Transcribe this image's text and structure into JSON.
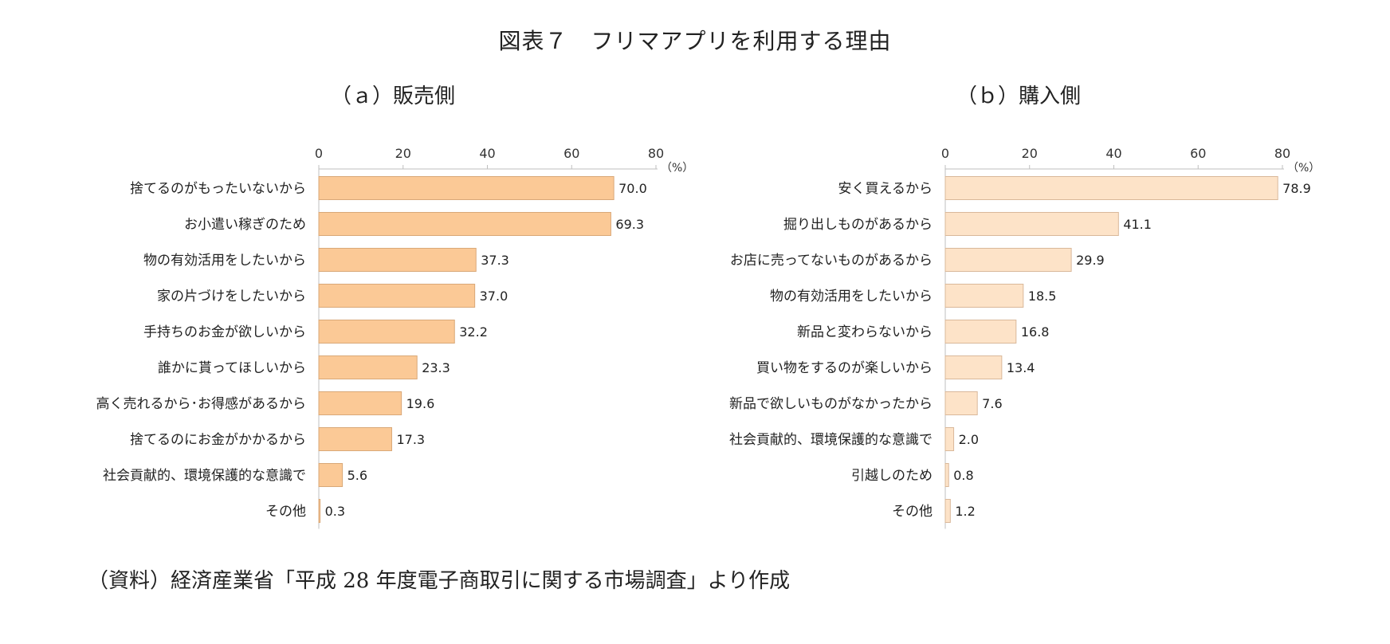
{
  "figure_title": "図表７　フリマアプリを利用する理由",
  "source_note": "（資料）経済産業省「平成 28 年度電子商取引に関する市場調査」より作成",
  "colors": {
    "bar_sell": "#fbc996",
    "bar_sell_stroke": "#d9a878",
    "bar_buy": "#fde3c8",
    "bar_buy_stroke": "#d9b89a",
    "axis": "#bfbfbf"
  },
  "chart_data": [
    {
      "type": "bar",
      "orientation": "horizontal",
      "title": "（ａ）販売側",
      "unit_label": "（%）",
      "xlim": [
        0,
        80
      ],
      "ticks": [
        0,
        20,
        40,
        60,
        80
      ],
      "axis_position": "top",
      "categories": [
        "捨てるのがもったいないから",
        "お小遣い稼ぎのため",
        "物の有効活用をしたいから",
        "家の片づけをしたいから",
        "手持ちのお金が欲しいから",
        "誰かに貰ってほしいから",
        "高く売れるから･お得感があるから",
        "捨てるのにお金がかかるから",
        "社会貢献的、環境保護的な意識で",
        "その他"
      ],
      "values": [
        70.0,
        69.3,
        37.3,
        37.0,
        32.2,
        23.3,
        19.6,
        17.3,
        5.6,
        0.3
      ],
      "value_labels": [
        "70.0",
        "69.3",
        "37.3",
        "37.0",
        "32.2",
        "23.3",
        "19.6",
        "17.3",
        "5.6",
        "0.3"
      ]
    },
    {
      "type": "bar",
      "orientation": "horizontal",
      "title": "（ｂ）購入側",
      "unit_label": "（%）",
      "xlim": [
        0,
        80
      ],
      "ticks": [
        0,
        20,
        40,
        60,
        80
      ],
      "axis_position": "top",
      "categories": [
        "安く買えるから",
        "掘り出しものがあるから",
        "お店に売ってないものがあるから",
        "物の有効活用をしたいから",
        "新品と変わらないから",
        "買い物をするのが楽しいから",
        "新品で欲しいものがなかったから",
        "社会貢献的、環境保護的な意識で",
        "引越しのため",
        "その他"
      ],
      "values": [
        78.9,
        41.1,
        29.9,
        18.5,
        16.8,
        13.4,
        7.6,
        2.0,
        0.8,
        1.2
      ],
      "value_labels": [
        "78.9",
        "41.1",
        "29.9",
        "18.5",
        "16.8",
        "13.4",
        "7.6",
        "2.0",
        "0.8",
        "1.2"
      ]
    }
  ]
}
